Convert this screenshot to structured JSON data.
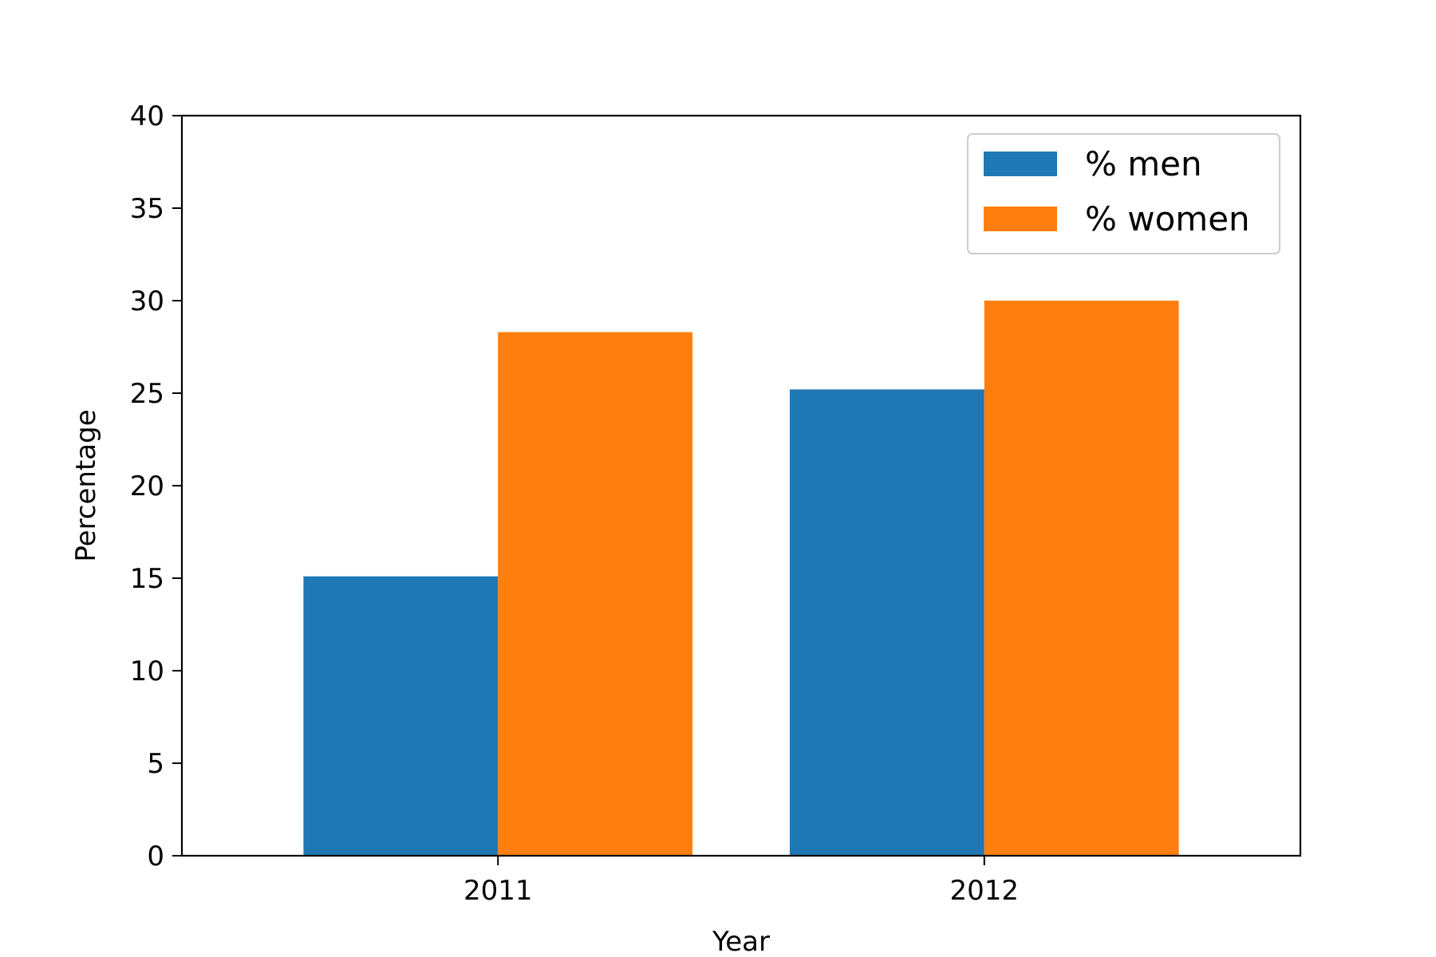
{
  "chart_data": {
    "type": "bar",
    "title": "",
    "xlabel": "Year",
    "ylabel": "Percentage",
    "categories": [
      "2011",
      "2012"
    ],
    "series": [
      {
        "name": "% men",
        "values": [
          15.1,
          25.2
        ],
        "color": "#1f77b4"
      },
      {
        "name": "% women",
        "values": [
          28.3,
          30.0
        ],
        "color": "#ff7f0e"
      }
    ],
    "ylim": [
      0,
      40
    ],
    "yticks": [
      "0",
      "5",
      "10",
      "15",
      "20",
      "25",
      "30",
      "35",
      "40"
    ],
    "grid": false,
    "legend_position": "top-right"
  }
}
